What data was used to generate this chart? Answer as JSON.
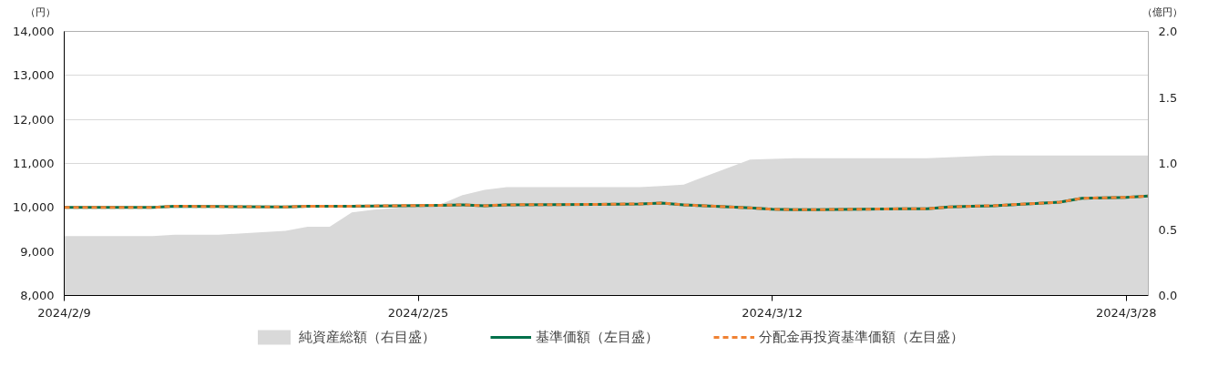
{
  "chart_data": {
    "type": "line",
    "ylabel": "（円）",
    "y2label": "（億円）",
    "xlim": [
      "2024-02-09",
      "2024-03-29"
    ],
    "xticks": [
      {
        "value": "2024-02-09",
        "label": "2024/2/9"
      },
      {
        "value": "2024-02-25",
        "label": "2024/2/25"
      },
      {
        "value": "2024-03-12",
        "label": "2024/3/12"
      },
      {
        "value": "2024-03-28",
        "label": "2024/3/28"
      }
    ],
    "ylim": [
      8000,
      14000
    ],
    "yticks": [
      {
        "value": 8000,
        "label": "8,000"
      },
      {
        "value": 9000,
        "label": "9,000"
      },
      {
        "value": 10000,
        "label": "10,000"
      },
      {
        "value": 11000,
        "label": "11,000"
      },
      {
        "value": 12000,
        "label": "12,000"
      },
      {
        "value": 13000,
        "label": "13,000"
      },
      {
        "value": 14000,
        "label": "14,000"
      }
    ],
    "y2lim": [
      0,
      2
    ],
    "y2ticks": [
      {
        "value": 0,
        "label": "0.0"
      },
      {
        "value": 0.5,
        "label": "0.5"
      },
      {
        "value": 1,
        "label": "1.0"
      },
      {
        "value": 1.5,
        "label": "1.5"
      },
      {
        "value": 2,
        "label": "2.0"
      }
    ],
    "grid": "y",
    "legend": "bottom",
    "series": [
      {
        "name": "純資産総額（右目盛）",
        "type": "area",
        "axis": "y2",
        "color": "#d9d9d9",
        "x": [
          "2024-02-09",
          "2024-02-13",
          "2024-02-14",
          "2024-02-16",
          "2024-02-19",
          "2024-02-20",
          "2024-02-21",
          "2024-02-22",
          "2024-02-23",
          "2024-02-26",
          "2024-02-27",
          "2024-02-28",
          "2024-02-29",
          "2024-03-06",
          "2024-03-07",
          "2024-03-08",
          "2024-03-11",
          "2024-03-13",
          "2024-03-19",
          "2024-03-22",
          "2024-03-29"
        ],
        "values": [
          0.45,
          0.45,
          0.46,
          0.46,
          0.49,
          0.52,
          0.52,
          0.63,
          0.65,
          0.69,
          0.76,
          0.8,
          0.82,
          0.82,
          0.83,
          0.84,
          1.03,
          1.04,
          1.04,
          1.06,
          1.06
        ]
      },
      {
        "name": "基準価額（左目盛）",
        "line_style": "solid",
        "color": "#00704a",
        "x": [
          "2024-02-09",
          "2024-02-13",
          "2024-02-14",
          "2024-02-16",
          "2024-02-19",
          "2024-02-20",
          "2024-02-22",
          "2024-02-26",
          "2024-02-27",
          "2024-02-28",
          "2024-02-29",
          "2024-03-04",
          "2024-03-06",
          "2024-03-07",
          "2024-03-08",
          "2024-03-11",
          "2024-03-12",
          "2024-03-13",
          "2024-03-14",
          "2024-03-18",
          "2024-03-19",
          "2024-03-20",
          "2024-03-21",
          "2024-03-22",
          "2024-03-25",
          "2024-03-26",
          "2024-03-27",
          "2024-03-28",
          "2024-03-29"
        ],
        "values": [
          10000,
          10000,
          10030,
          10020,
          10010,
          10030,
          10030,
          10050,
          10060,
          10040,
          10060,
          10070,
          10080,
          10100,
          10060,
          9990,
          9960,
          9950,
          9950,
          9970,
          9970,
          10010,
          10030,
          10040,
          10120,
          10210,
          10220,
          10230,
          10260
        ]
      },
      {
        "name": "分配金再投資基準価額（左目盛）",
        "line_style": "dashed",
        "color": "#f08233",
        "x": [
          "2024-02-09",
          "2024-02-13",
          "2024-02-14",
          "2024-02-16",
          "2024-02-19",
          "2024-02-20",
          "2024-02-22",
          "2024-02-26",
          "2024-02-27",
          "2024-02-28",
          "2024-02-29",
          "2024-03-04",
          "2024-03-06",
          "2024-03-07",
          "2024-03-08",
          "2024-03-11",
          "2024-03-12",
          "2024-03-13",
          "2024-03-14",
          "2024-03-18",
          "2024-03-19",
          "2024-03-20",
          "2024-03-21",
          "2024-03-22",
          "2024-03-25",
          "2024-03-26",
          "2024-03-27",
          "2024-03-28",
          "2024-03-29"
        ],
        "values": [
          10000,
          10000,
          10030,
          10020,
          10010,
          10030,
          10030,
          10050,
          10060,
          10040,
          10060,
          10070,
          10080,
          10100,
          10060,
          9990,
          9960,
          9950,
          9950,
          9970,
          9970,
          10010,
          10030,
          10040,
          10120,
          10210,
          10220,
          10230,
          10260
        ]
      }
    ]
  }
}
